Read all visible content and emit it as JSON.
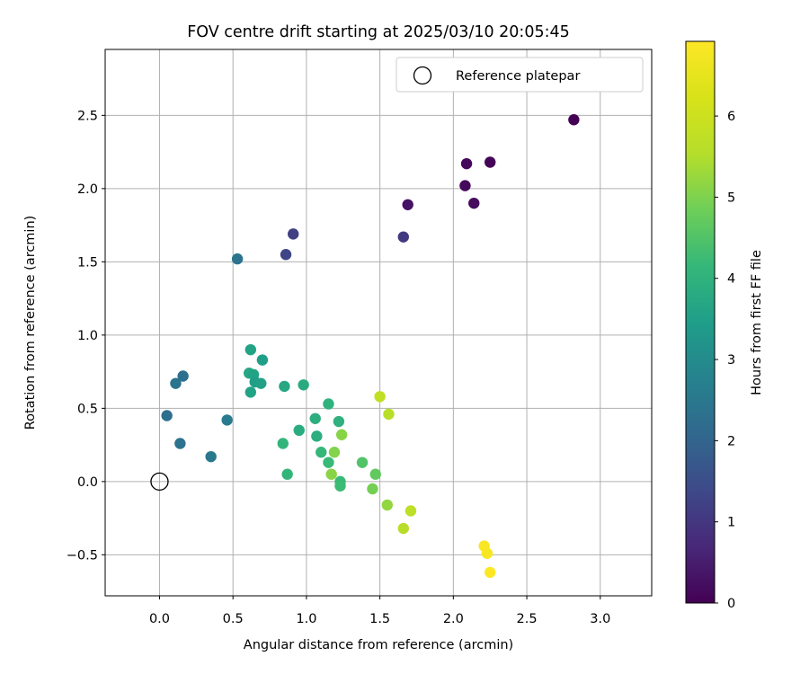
{
  "chart_data": {
    "type": "scatter",
    "title": "FOV centre drift starting at 2025/03/10 20:05:45",
    "xlabel": "Angular distance from reference (arcmin)",
    "ylabel": "Rotation from reference (arcmin)",
    "xlim": [
      -0.37,
      3.35
    ],
    "ylim": [
      -0.78,
      2.95
    ],
    "xticks": [
      "0.0",
      "0.5",
      "1.0",
      "1.5",
      "2.0",
      "2.5",
      "3.0"
    ],
    "yticks": [
      "−0.5",
      "0.0",
      "0.5",
      "1.0",
      "1.5",
      "2.0",
      "2.5"
    ],
    "xtick_values": [
      0.0,
      0.5,
      1.0,
      1.5,
      2.0,
      2.5,
      3.0
    ],
    "ytick_values": [
      -0.5,
      0.0,
      0.5,
      1.0,
      1.5,
      2.0,
      2.5
    ],
    "grid": true,
    "legend": {
      "placement": "upper right",
      "entries": [
        "Reference platepar"
      ]
    },
    "reference_point": {
      "x": 0.0,
      "y": 0.0
    },
    "colorbar": {
      "label": "Hours from first FF file",
      "colormap": "viridis",
      "range": [
        0,
        6.92
      ],
      "ticks": [
        "0",
        "1",
        "2",
        "3",
        "4",
        "5",
        "6"
      ],
      "tick_values": [
        0,
        1,
        2,
        3,
        4,
        5,
        6
      ]
    },
    "points": [
      {
        "x": 2.82,
        "y": 2.47,
        "c": 0.0
      },
      {
        "x": 2.25,
        "y": 2.18,
        "c": 0.05
      },
      {
        "x": 2.09,
        "y": 2.17,
        "c": 0.1
      },
      {
        "x": 2.08,
        "y": 2.02,
        "c": 0.15
      },
      {
        "x": 2.14,
        "y": 1.9,
        "c": 0.2
      },
      {
        "x": 1.69,
        "y": 1.89,
        "c": 0.3
      },
      {
        "x": 1.66,
        "y": 1.67,
        "c": 1.05
      },
      {
        "x": 0.91,
        "y": 1.69,
        "c": 1.2
      },
      {
        "x": 0.86,
        "y": 1.55,
        "c": 1.3
      },
      {
        "x": 0.53,
        "y": 1.52,
        "c": 2.4
      },
      {
        "x": 0.16,
        "y": 0.72,
        "c": 2.3
      },
      {
        "x": 0.11,
        "y": 0.67,
        "c": 2.4
      },
      {
        "x": 0.05,
        "y": 0.45,
        "c": 2.25
      },
      {
        "x": 0.14,
        "y": 0.26,
        "c": 2.35
      },
      {
        "x": 0.35,
        "y": 0.17,
        "c": 2.5
      },
      {
        "x": 0.46,
        "y": 0.42,
        "c": 2.6
      },
      {
        "x": 0.62,
        "y": 0.9,
        "c": 3.6
      },
      {
        "x": 0.7,
        "y": 0.83,
        "c": 3.5
      },
      {
        "x": 0.61,
        "y": 0.74,
        "c": 3.7
      },
      {
        "x": 0.64,
        "y": 0.73,
        "c": 3.6
      },
      {
        "x": 0.65,
        "y": 0.68,
        "c": 3.5
      },
      {
        "x": 0.69,
        "y": 0.67,
        "c": 3.55
      },
      {
        "x": 0.62,
        "y": 0.61,
        "c": 3.6
      },
      {
        "x": 0.85,
        "y": 0.65,
        "c": 3.7
      },
      {
        "x": 0.98,
        "y": 0.66,
        "c": 3.8
      },
      {
        "x": 1.15,
        "y": 0.53,
        "c": 4.0
      },
      {
        "x": 1.06,
        "y": 0.43,
        "c": 3.9
      },
      {
        "x": 1.22,
        "y": 0.41,
        "c": 3.95
      },
      {
        "x": 0.95,
        "y": 0.35,
        "c": 3.85
      },
      {
        "x": 1.07,
        "y": 0.31,
        "c": 3.9
      },
      {
        "x": 0.84,
        "y": 0.26,
        "c": 4.1
      },
      {
        "x": 1.1,
        "y": 0.2,
        "c": 4.15
      },
      {
        "x": 1.15,
        "y": 0.13,
        "c": 4.2
      },
      {
        "x": 0.87,
        "y": 0.05,
        "c": 4.1
      },
      {
        "x": 1.24,
        "y": 0.32,
        "c": 5.1
      },
      {
        "x": 1.19,
        "y": 0.2,
        "c": 5.05
      },
      {
        "x": 1.17,
        "y": 0.05,
        "c": 5.1
      },
      {
        "x": 1.23,
        "y": 0.0,
        "c": 4.2
      },
      {
        "x": 1.23,
        "y": -0.03,
        "c": 4.25
      },
      {
        "x": 1.38,
        "y": 0.13,
        "c": 4.5
      },
      {
        "x": 1.47,
        "y": 0.05,
        "c": 4.7
      },
      {
        "x": 1.45,
        "y": -0.05,
        "c": 4.9
      },
      {
        "x": 1.5,
        "y": 0.58,
        "c": 5.75
      },
      {
        "x": 1.56,
        "y": 0.46,
        "c": 5.6
      },
      {
        "x": 1.55,
        "y": -0.16,
        "c": 5.2
      },
      {
        "x": 1.71,
        "y": -0.2,
        "c": 5.7
      },
      {
        "x": 1.66,
        "y": -0.32,
        "c": 5.6
      },
      {
        "x": 2.21,
        "y": -0.44,
        "c": 6.85
      },
      {
        "x": 2.23,
        "y": -0.49,
        "c": 6.8
      },
      {
        "x": 2.25,
        "y": -0.62,
        "c": 6.9
      }
    ]
  }
}
